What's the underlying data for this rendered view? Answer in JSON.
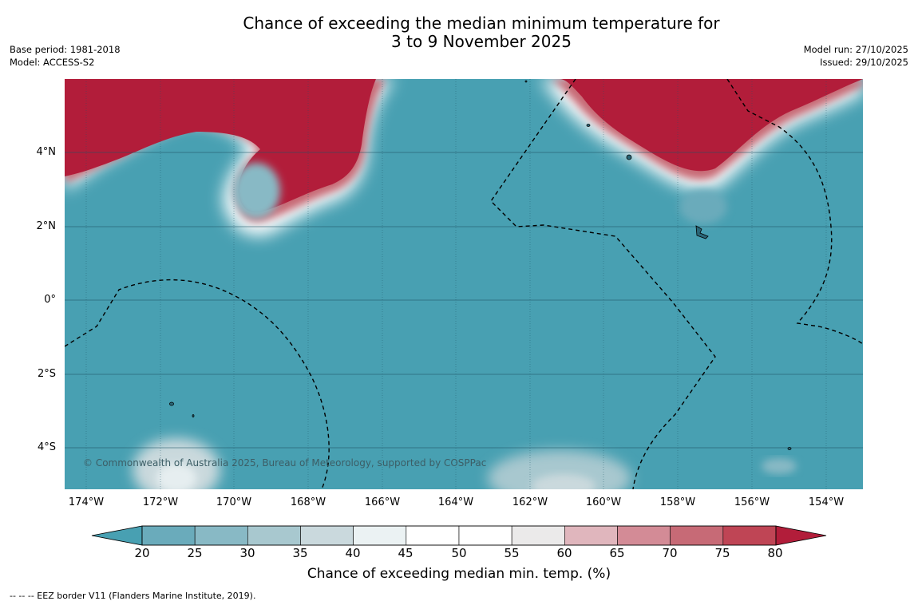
{
  "title_line1": "Chance of exceeding the median minimum temperature for",
  "title_line2": "3 to 9 November 2025",
  "meta": {
    "base_period": "Base period: 1981-2018",
    "model": "Model: ACCESS-S2",
    "model_run": "Model run: 27/10/2025",
    "issued": "Issued: 29/10/2025"
  },
  "map": {
    "lat_labels": [
      "4°N",
      "2°N",
      "0°",
      "2°S",
      "4°S"
    ],
    "lon_labels": [
      "174°W",
      "172°W",
      "170°W",
      "168°W",
      "166°W",
      "164°W",
      "162°W",
      "160°W",
      "158°W",
      "156°W",
      "154°W"
    ],
    "credit": "© Commonwealth of Australia 2025, Bureau of Meteorology, supported by COSPPac",
    "colors": {
      "low": "#48a0b2",
      "high": "#b21d3a",
      "grid": "#1f5566"
    }
  },
  "colorbar": {
    "ticks": [
      "20",
      "25",
      "30",
      "35",
      "40",
      "45",
      "50",
      "55",
      "60",
      "65",
      "70",
      "75",
      "80"
    ],
    "colors": [
      "#48a0b2",
      "#6aabbb",
      "#88b9c5",
      "#a8c8cf",
      "#cad9dd",
      "#ebf2f3",
      "#ffffff",
      "#ffffff",
      "#ebeaea",
      "#e0b6bd",
      "#d38b96",
      "#c76a76",
      "#bf4555",
      "#b21d3a"
    ],
    "label": "Chance of exceeding median min. temp. (%)"
  },
  "footnote": "--  --  -- EEZ border V11 (Flanders Marine Institute, 2019)."
}
